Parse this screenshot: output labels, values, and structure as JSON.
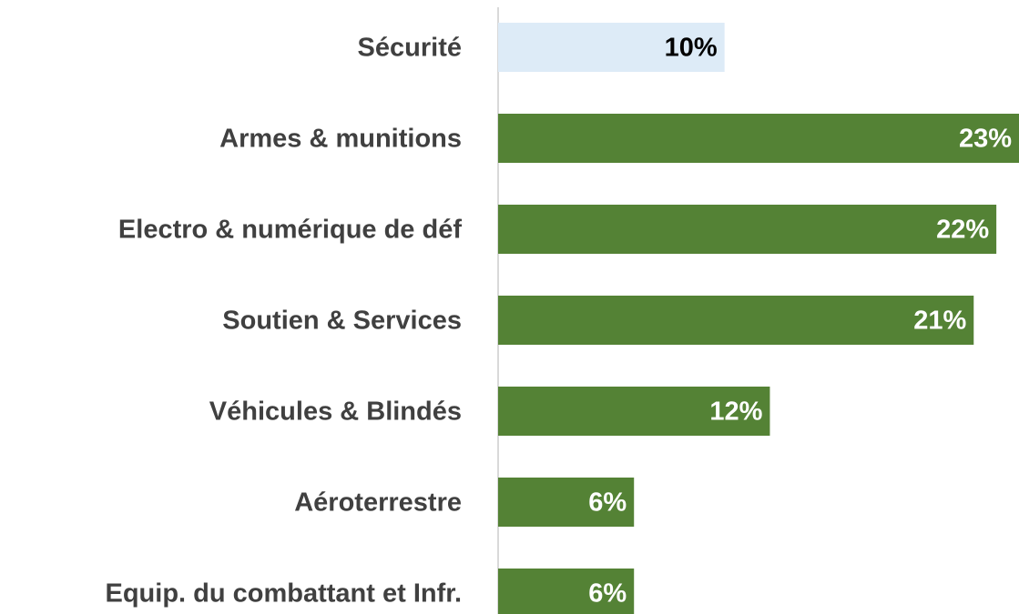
{
  "chart_data": {
    "type": "barh",
    "categories": [
      "Sécurité",
      "Armes & munitions",
      "Electro & numérique de déf",
      "Soutien & Services",
      "Véhicules & Blindés",
      "Aéroterrestre",
      "Equip. du combattant et Infr."
    ],
    "values": [
      10,
      23,
      22,
      21,
      12,
      6,
      6
    ],
    "value_labels": [
      "10%",
      "23%",
      "22%",
      "21%",
      "12%",
      "6%",
      "6%"
    ],
    "colors": [
      "#ddebf7",
      "#548235",
      "#548235",
      "#548235",
      "#548235",
      "#548235",
      "#548235"
    ],
    "label_colors": [
      "#000000",
      "#ffffff",
      "#ffffff",
      "#ffffff",
      "#ffffff",
      "#ffffff",
      "#ffffff"
    ],
    "xlim": [
      0,
      23
    ]
  }
}
